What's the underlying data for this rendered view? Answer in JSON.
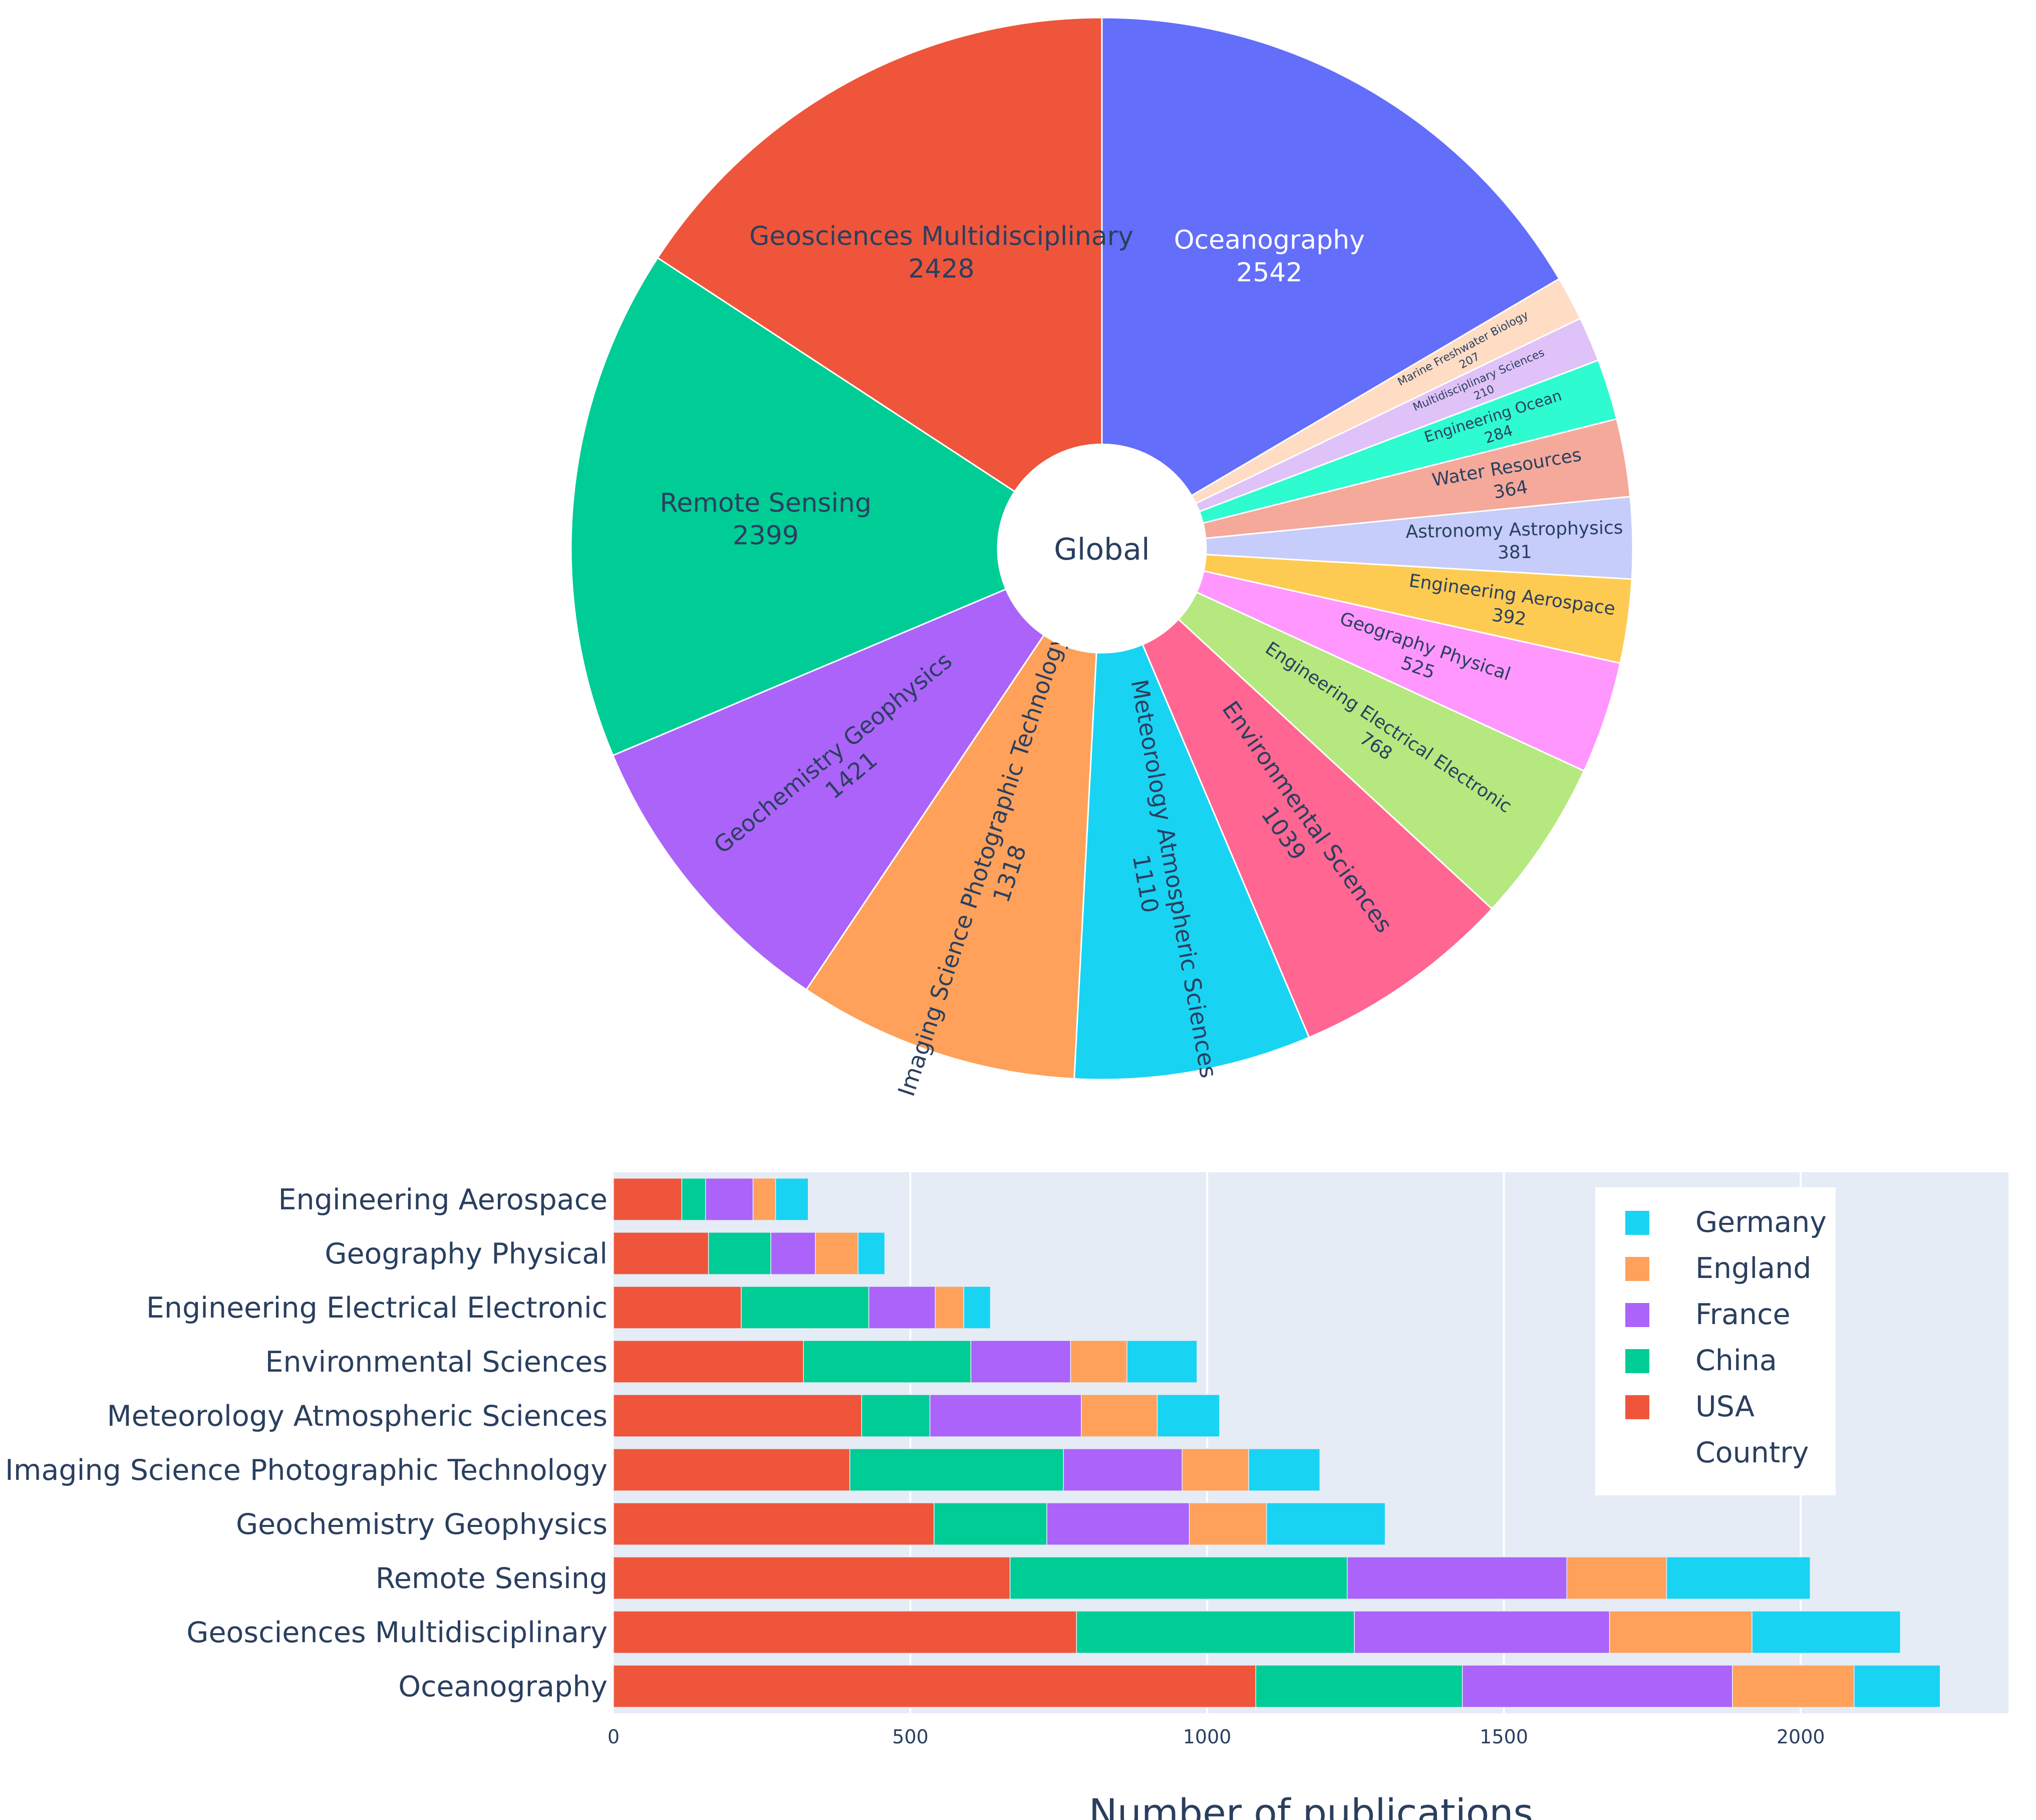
{
  "chart_data": [
    {
      "type": "sunburst",
      "center_label": "Global",
      "slices": [
        {
          "label": "Oceanography",
          "value": 2542,
          "color": "#636efa"
        },
        {
          "label": "Marine Freshwater Biology",
          "value": 207,
          "color": "#ffdcc4"
        },
        {
          "label": "Multidisciplinary Sciences",
          "value": 210,
          "color": "#dfc2f7"
        },
        {
          "label": "Engineering Ocean",
          "value": 284,
          "color": "#2efbcf"
        },
        {
          "label": "Water Resources",
          "value": 364,
          "color": "#f4a99a"
        },
        {
          "label": "Astronomy Astrophysics",
          "value": 381,
          "color": "#c6cdfa"
        },
        {
          "label": "Engineering Aerospace",
          "value": 392,
          "color": "#fecb52"
        },
        {
          "label": "Geography Physical",
          "value": 525,
          "color": "#ff97ff"
        },
        {
          "label": "Engineering Electrical Electronic",
          "value": 768,
          "color": "#b6e880"
        },
        {
          "label": "Environmental Sciences",
          "value": 1039,
          "color": "#ff6692"
        },
        {
          "label": "Meteorology Atmospheric Sciences",
          "value": 1110,
          "color": "#19d3f3"
        },
        {
          "label": "Imaging Science Photographic Technology",
          "value": 1318,
          "color": "#ffa15a"
        },
        {
          "label": "Geochemistry Geophysics",
          "value": 1421,
          "color": "#ab63fa"
        },
        {
          "label": "Remote Sensing",
          "value": 2399,
          "color": "#00cc96"
        },
        {
          "label": "Geosciences Multidisciplinary",
          "value": 2428,
          "color": "#ef553b"
        }
      ]
    },
    {
      "type": "bar",
      "orientation": "horizontal",
      "stacked": true,
      "xlabel": "Number of publications",
      "xlim": [
        0,
        2350
      ],
      "x_ticks": [
        0,
        500,
        1000,
        1500,
        2000
      ],
      "x_tick_labels": [
        "0",
        "500",
        "1000",
        "1500",
        "2000"
      ],
      "categories": [
        "Engineering Aerospace",
        "Geography Physical",
        "Engineering Electrical Electronic",
        "Environmental Sciences",
        "Meteorology Atmospheric Sciences",
        "Imaging Science Photographic Technology",
        "Geochemistry Geophysics",
        "Remote Sensing",
        "Geosciences Multidisciplinary",
        "Oceanography"
      ],
      "series": [
        {
          "name": "USA",
          "color": "#ef553b",
          "values": [
            115,
            160,
            215,
            320,
            418,
            398,
            540,
            668,
            780,
            1082
          ]
        },
        {
          "name": "China",
          "color": "#00cc96",
          "values": [
            40,
            105,
            215,
            282,
            115,
            360,
            190,
            568,
            468,
            348
          ]
        },
        {
          "name": "France",
          "color": "#ab63fa",
          "values": [
            80,
            75,
            112,
            168,
            255,
            200,
            240,
            370,
            430,
            455
          ]
        },
        {
          "name": "England",
          "color": "#ffa15a",
          "values": [
            38,
            72,
            48,
            95,
            128,
            112,
            130,
            168,
            240,
            205
          ]
        },
        {
          "name": "Germany",
          "color": "#19d3f3",
          "values": [
            55,
            45,
            45,
            118,
            105,
            120,
            200,
            242,
            250,
            145
          ]
        }
      ],
      "legend": {
        "title": "Country",
        "order": [
          "Germany",
          "England",
          "France",
          "China",
          "USA"
        ],
        "position": "top-right"
      }
    }
  ]
}
